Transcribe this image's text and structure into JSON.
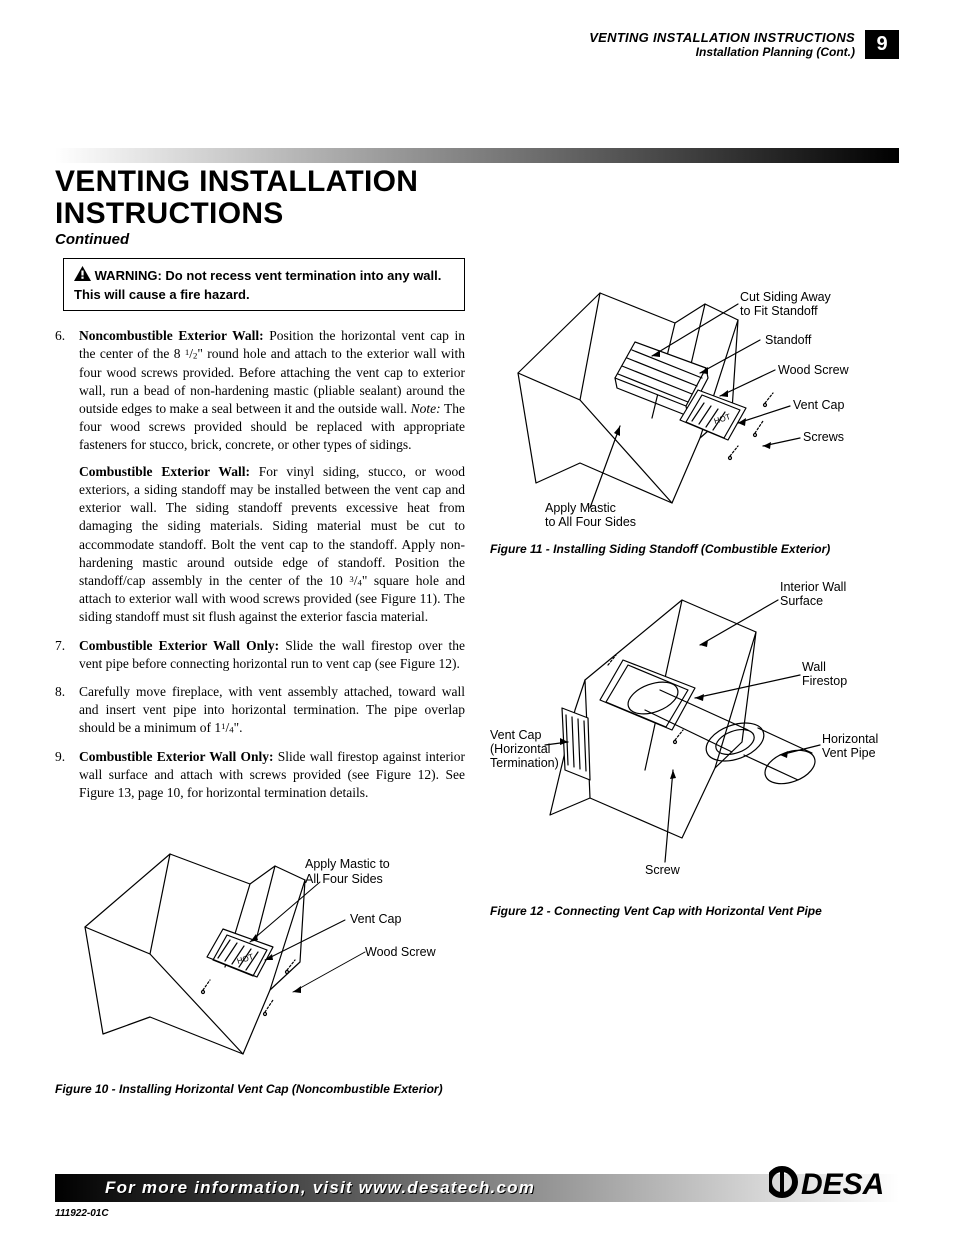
{
  "header": {
    "line1": "VENTING INSTALLATION INSTRUCTIONS",
    "line2": "Installation Planning (Cont.)",
    "page_number": "9"
  },
  "title": {
    "line1": "VENTING INSTALLATION",
    "line2": "INSTRUCTIONS",
    "subtitle": "Continued"
  },
  "warning": {
    "prefix": "WARNING:",
    "text": "Do not recess vent termination into any wall. This will cause a fire hazard."
  },
  "steps": [
    {
      "n": "6.",
      "paragraphs": [
        {
          "runs": [
            {
              "b": true,
              "t": "Noncombustible Exterior Wall: "
            },
            {
              "t": "Position the horizontal vent cap in the center of the 8 "
            },
            {
              "frac": [
                "1",
                "2"
              ]
            },
            {
              "t": "\" round hole and attach to the exterior wall with four wood screws provided. Before attaching the vent cap to exterior wall, run a bead of non-hardening mastic (pliable sealant) around the outside edges to make a seal between it and the outside wall. "
            },
            {
              "i": true,
              "t": "Note: "
            },
            {
              "t": "The four wood screws provided should be replaced with appropriate fasteners for stucco, brick, concrete, or other types of sidings."
            }
          ]
        },
        {
          "runs": [
            {
              "b": true,
              "t": "Combustible Exterior Wall: "
            },
            {
              "t": "For vinyl siding, stucco, or wood exteriors, a siding standoff may be installed between the vent cap and exterior wall. The siding standoff prevents excessive heat from damaging the siding materials. Siding material must be cut to accommodate standoff. Bolt the vent cap to the standoff. Apply non-hardening mastic around outside edge of standoff. Position the standoff/cap assembly in the center of the 10 "
            },
            {
              "frac": [
                "3",
                "4"
              ]
            },
            {
              "t": "\" square hole and attach to exterior wall with wood screws provided (see Figure 11). The siding standoff must sit flush against the exterior fascia material."
            }
          ]
        }
      ]
    },
    {
      "n": "7.",
      "paragraphs": [
        {
          "runs": [
            {
              "b": true,
              "t": "Combustible Exterior Wall Only: "
            },
            {
              "t": "Slide the wall firestop over the vent pipe before connecting horizontal run to vent cap (see Figure 12)."
            }
          ]
        }
      ]
    },
    {
      "n": "8.",
      "paragraphs": [
        {
          "runs": [
            {
              "t": "Carefully move fireplace, with vent assembly attached, toward wall and insert vent pipe into horizontal termination. The pipe overlap should be a minimum of 1"
            },
            {
              "frac": [
                "1",
                "4"
              ]
            },
            {
              "t": "\"."
            }
          ]
        }
      ]
    },
    {
      "n": "9.",
      "paragraphs": [
        {
          "runs": [
            {
              "b": true,
              "t": "Combustible Exterior Wall Only: "
            },
            {
              "t": "Slide wall firestop against interior wall surface and attach with screws provided (see Figure 12). See Figure 13, page 10, for horizontal termination details."
            }
          ]
        }
      ]
    }
  ],
  "figure10": {
    "caption": "Figure 10 - Installing Horizontal Vent Cap (Noncombustible Exterior)",
    "labels": {
      "mastic": "Apply Mastic to\nAll Four Sides",
      "ventcap": "Vent Cap",
      "screw": "Wood Screw"
    }
  },
  "figure11": {
    "caption": "Figure 11 - Installing Siding Standoff (Combustible Exterior)",
    "labels": {
      "cut": "Cut Siding Away\nto Fit Standoff",
      "standoff": "Standoff",
      "screw": "Wood Screw",
      "ventcap": "Vent Cap",
      "screws": "Screws",
      "mastic": "Apply Mastic\nto All Four Sides"
    }
  },
  "figure12": {
    "caption": "Figure 12 - Connecting Vent Cap with Horizontal Vent Pipe",
    "labels": {
      "interior": "Interior Wall\nSurface",
      "firestop": "Wall\nFirestop",
      "horiz": "Horizontal\nVent Pipe",
      "ventcap": "Vent Cap\n(Horizontal\nTermination)",
      "screw": "Screw"
    }
  },
  "footer": {
    "text": "For more information, visit www.desatech.com",
    "doc_code": "111922-01C",
    "logo_text": "DESA"
  },
  "colors": {
    "black": "#000000",
    "white": "#ffffff"
  }
}
